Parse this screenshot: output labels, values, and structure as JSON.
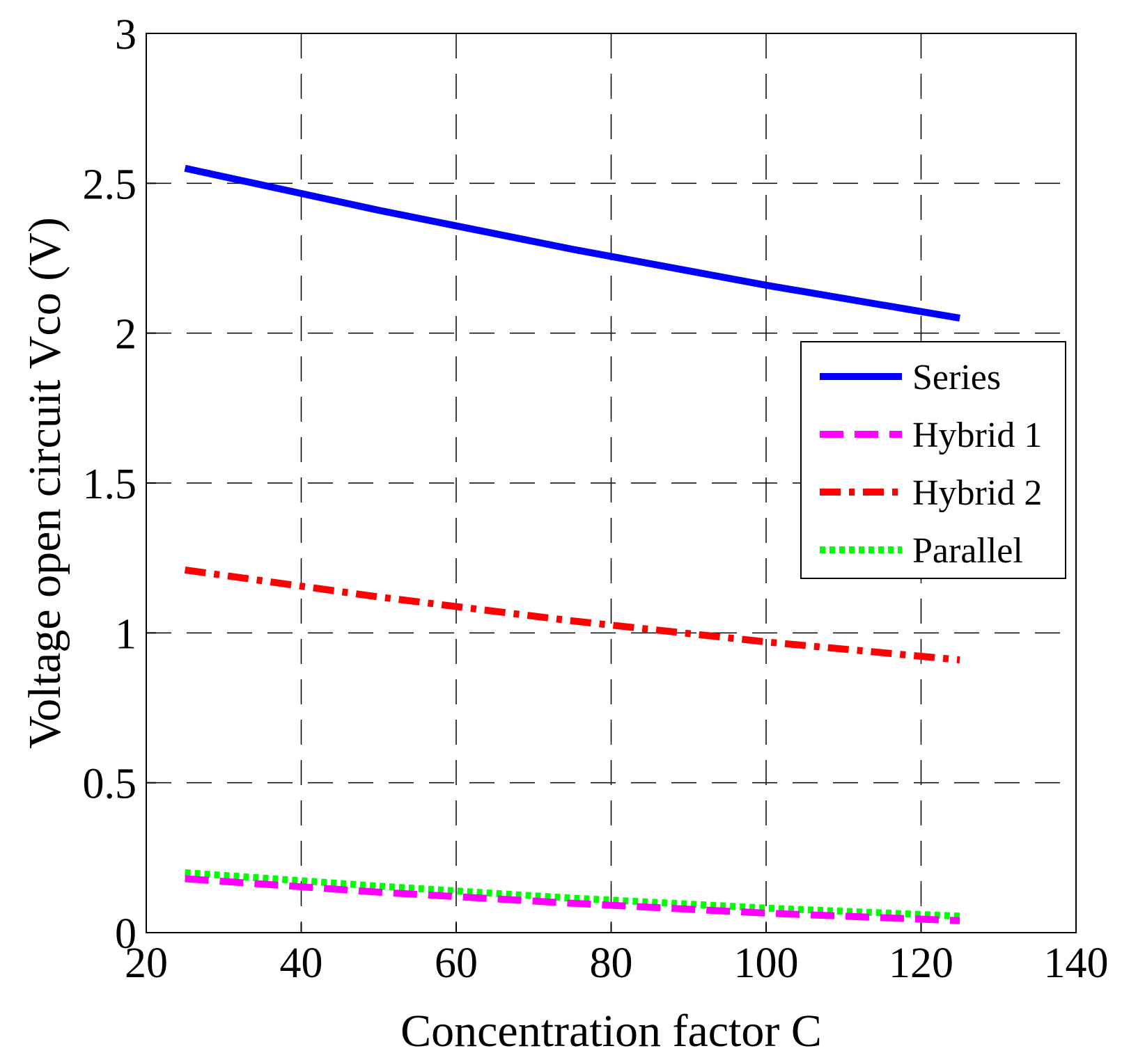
{
  "chart_data": {
    "type": "line",
    "title": "",
    "xlabel": "Concentration factor C",
    "ylabel": "Voltage open circuit Vco (V)",
    "xlim": [
      20,
      140
    ],
    "ylim": [
      0,
      3
    ],
    "grid": true,
    "legend_position": "right",
    "x_ticks": [
      "20",
      "40",
      "60",
      "80",
      "100",
      "120",
      "140"
    ],
    "y_ticks": [
      "0",
      "0.5",
      "1",
      "1.5",
      "2",
      "2.5",
      "3"
    ],
    "x": [
      25,
      50,
      75,
      100,
      125
    ],
    "series": [
      {
        "name": "Series",
        "color": "#0000ff",
        "style": "solid",
        "values": [
          2.55,
          2.41,
          2.28,
          2.16,
          2.05
        ]
      },
      {
        "name": "Hybrid 1",
        "color": "#ff00ff",
        "style": "dashed",
        "values": [
          0.18,
          0.135,
          0.098,
          0.065,
          0.04
        ]
      },
      {
        "name": "Hybrid 2",
        "color": "#ff0000",
        "style": "dashdot",
        "values": [
          1.21,
          1.12,
          1.04,
          0.97,
          0.91
        ]
      },
      {
        "name": "Parallel",
        "color": "#00ff00",
        "style": "dotted",
        "values": [
          0.2,
          0.155,
          0.115,
          0.082,
          0.055
        ]
      }
    ]
  }
}
